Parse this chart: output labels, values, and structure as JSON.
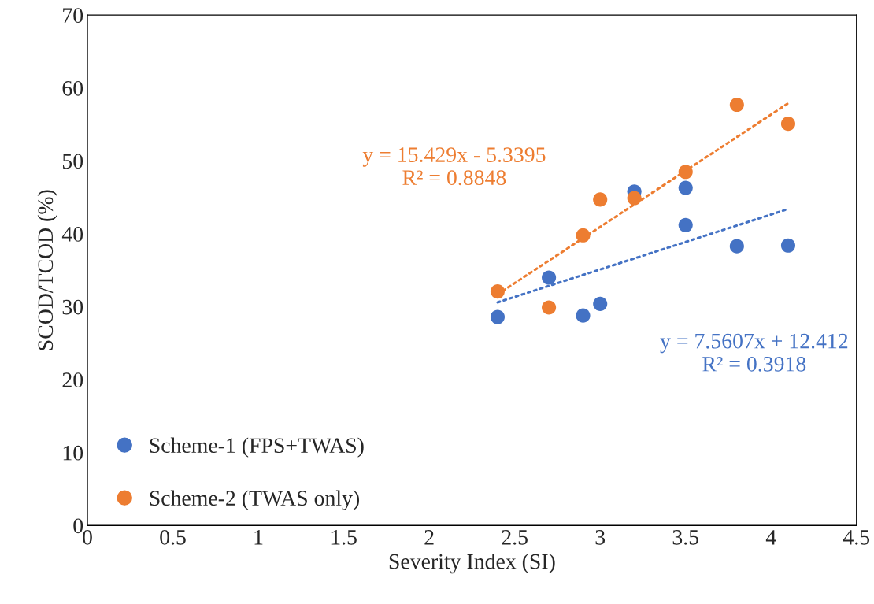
{
  "chart_data": {
    "type": "scatter",
    "xlabel": "Severity Index (SI)",
    "ylabel": "SCOD/TCOD (%)",
    "xlim": [
      0,
      4.5
    ],
    "xticks": [
      0,
      0.5,
      1,
      1.5,
      2,
      2.5,
      3,
      3.5,
      4,
      4.5
    ],
    "ylim": [
      0,
      70
    ],
    "yticks": [
      0,
      10,
      20,
      30,
      40,
      50,
      60,
      70
    ],
    "grid": false,
    "legend": "bottom left",
    "marker": "circle",
    "series": [
      {
        "name": "Scheme-1 (FPS+TWAS)",
        "color": "#4472c4",
        "x": [
          2.4,
          2.7,
          2.9,
          3.0,
          3.2,
          3.5,
          3.5,
          3.8,
          4.1
        ],
        "values": [
          28.6,
          34.0,
          28.8,
          30.4,
          45.8,
          46.3,
          41.2,
          38.3,
          38.4
        ]
      },
      {
        "name": "Scheme-2 (TWAS only)",
        "color": "#ed7d31",
        "x": [
          2.4,
          2.7,
          2.9,
          3.0,
          3.2,
          3.5,
          3.8,
          4.1
        ],
        "values": [
          32.1,
          29.9,
          39.8,
          44.7,
          44.9,
          48.5,
          57.7,
          55.1
        ]
      },
      {
        "type": "line",
        "color": "#ed7d31",
        "line_style": "dotted",
        "marker": "none",
        "x": [
          2.4,
          4.1
        ],
        "values": [
          31.7,
          57.9
        ]
      },
      {
        "type": "line",
        "color": "#4472c4",
        "line_style": "dotted",
        "marker": "none",
        "x": [
          2.4,
          4.1
        ],
        "values": [
          30.6,
          43.4
        ]
      }
    ],
    "annotations": [
      "y = 15.429x - 5.3395\nR² = 0.8848",
      "y = 7.5607x + 12.412\nR² = 0.3918"
    ]
  }
}
